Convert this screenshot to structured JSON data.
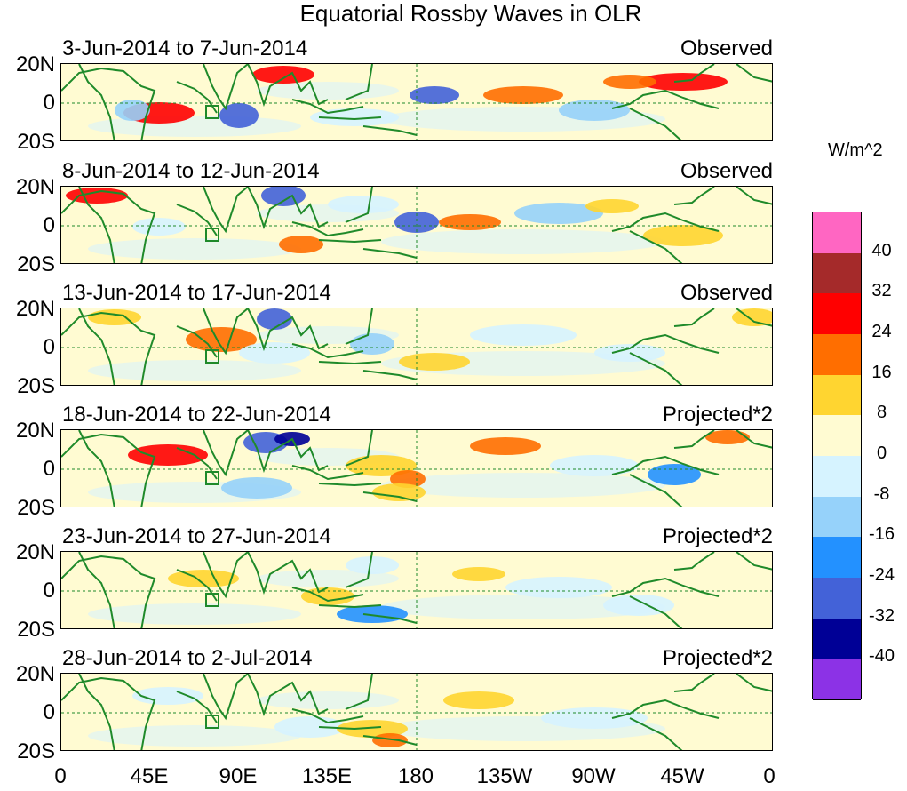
{
  "title": "Equatorial Rossby Waves in OLR",
  "panels": [
    {
      "dates": "3-Jun-2014 to 7-Jun-2014",
      "label": "Observed"
    },
    {
      "dates": "8-Jun-2014 to 12-Jun-2014",
      "label": "Observed"
    },
    {
      "dates": "13-Jun-2014 to 17-Jun-2014",
      "label": "Observed"
    },
    {
      "dates": "18-Jun-2014 to 22-Jun-2014",
      "label": "Projected*2"
    },
    {
      "dates": "23-Jun-2014 to 27-Jun-2014",
      "label": "Projected*2"
    },
    {
      "dates": "28-Jun-2014 to 2-Jul-2014",
      "label": "Projected*2"
    }
  ],
  "lat_labels": [
    "20N",
    "0",
    "20S"
  ],
  "lon_labels": [
    "0",
    "45E",
    "90E",
    "135E",
    "180",
    "135W",
    "90W",
    "45W",
    "0"
  ],
  "colorbar": {
    "unit": "W/m^2",
    "labels": [
      "40",
      "32",
      "24",
      "16",
      "8",
      "0",
      "-8",
      "-16",
      "-24",
      "-32",
      "-40"
    ],
    "colors": [
      "#ff66c2",
      "#a52a2a",
      "#ff0000",
      "#ff6e00",
      "#ffd530",
      "#fffbd2",
      "#d6f3ff",
      "#96d2fa",
      "#2391ff",
      "#4362d8",
      "#000096",
      "#8c32e6"
    ]
  }
}
